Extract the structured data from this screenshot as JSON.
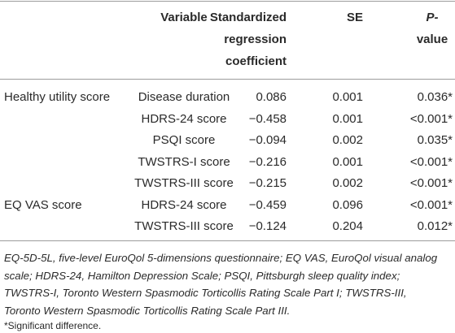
{
  "table": {
    "headers": {
      "variable": "Variable",
      "coefficient_lines": [
        "Standardized",
        "regression",
        "coefficient"
      ],
      "se": "SE",
      "p_lines": [
        "P-",
        "value"
      ]
    },
    "groups": [
      {
        "label": "Healthy utility score",
        "rows": [
          {
            "variable": "Disease duration",
            "coefficient": "0.086",
            "se": "0.001",
            "p": "0.036*"
          },
          {
            "variable": "HDRS-24 score",
            "coefficient": "−0.458",
            "se": "0.001",
            "p": "<0.001*"
          },
          {
            "variable": "PSQI score",
            "coefficient": "−0.094",
            "se": "0.002",
            "p": "0.035*"
          },
          {
            "variable": "TWSTRS-I score",
            "coefficient": "−0.216",
            "se": "0.001",
            "p": "<0.001*"
          },
          {
            "variable": "TWSTRS-III score",
            "coefficient": "−0.215",
            "se": "0.002",
            "p": "<0.001*"
          }
        ]
      },
      {
        "label": "EQ VAS score",
        "rows": [
          {
            "variable": "HDRS-24 score",
            "coefficient": "−0.459",
            "se": "0.096",
            "p": "<0.001*"
          },
          {
            "variable": "TWSTRS-III score",
            "coefficient": "−0.124",
            "se": "0.204",
            "p": "0.012*"
          }
        ]
      }
    ]
  },
  "footnote": {
    "lines": [
      "EQ-5D-5L, five-level EuroQol 5-dimensions questionnaire; EQ VAS, EuroQol visual analog",
      "scale; HDRS-24, Hamilton Depression Scale; PSQI, Pittsburgh sleep quality index;",
      "TWSTRS-I, Toronto Western Spasmodic Torticollis Rating Scale Part I; TWSTRS-III,",
      "Toronto Western Spasmodic Torticollis Rating Scale Part III."
    ],
    "significance": "*Significant difference."
  }
}
